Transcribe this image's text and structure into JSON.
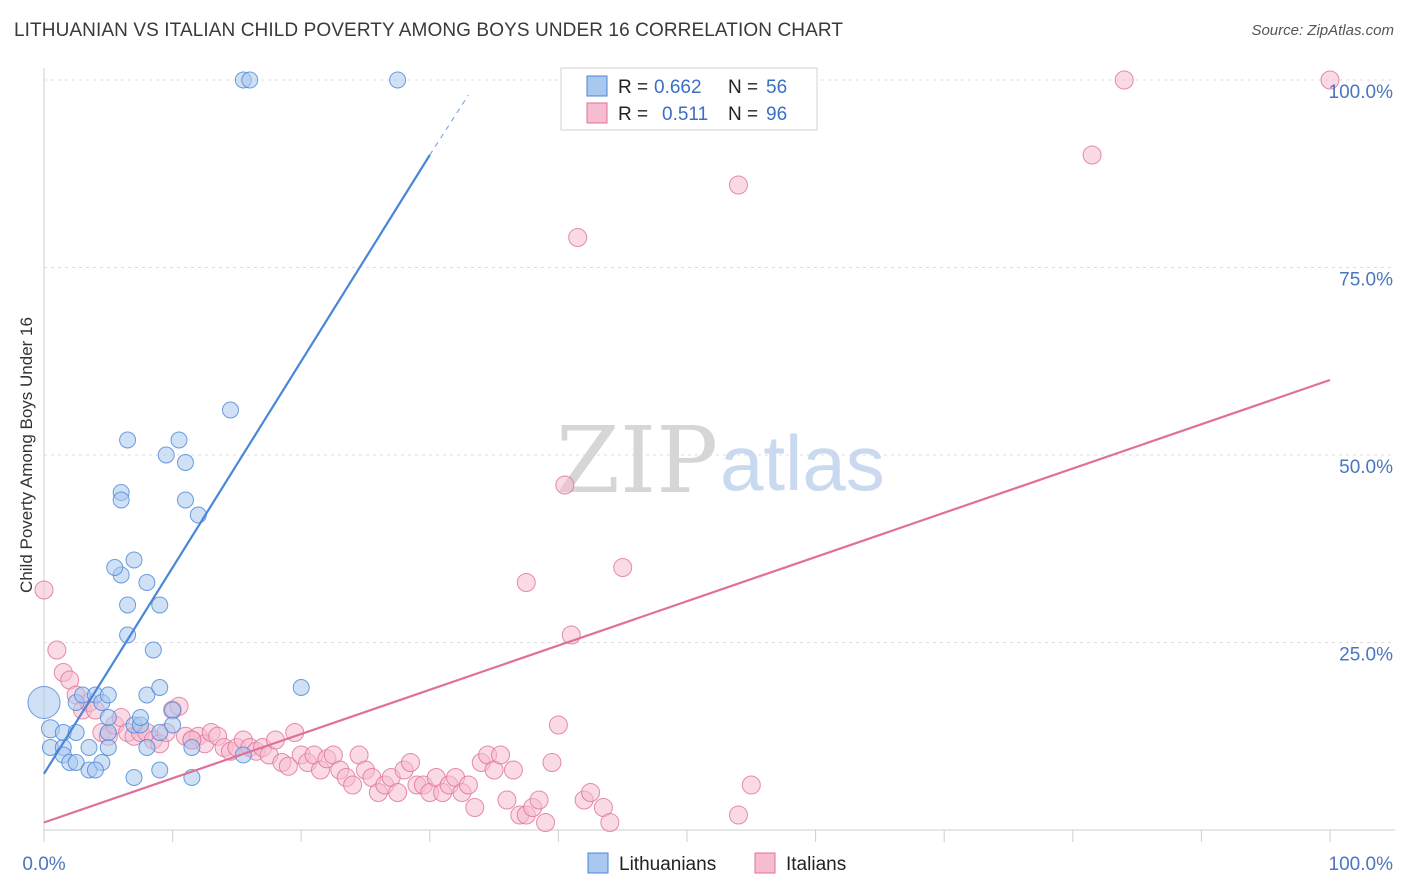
{
  "title": "LITHUANIAN VS ITALIAN CHILD POVERTY AMONG BOYS UNDER 16 CORRELATION CHART",
  "source": "Source: ZipAtlas.com",
  "watermark": {
    "zip": "ZIP",
    "atlas": "atlas"
  },
  "chart_data": {
    "type": "scatter",
    "ylabel": "Child Poverty Among Boys Under 16",
    "xlim": [
      0,
      100
    ],
    "ylim": [
      0,
      100
    ],
    "x_tick_labels": [
      "0.0%",
      "100.0%"
    ],
    "y_ticks": [
      {
        "value": 25,
        "label": "25.0%"
      },
      {
        "value": 50,
        "label": "50.0%"
      },
      {
        "value": 75,
        "label": "75.0%"
      },
      {
        "value": 100,
        "label": "100.0%"
      }
    ],
    "grid": true,
    "legend_position": "top-center",
    "series": [
      {
        "name": "Lithuanians",
        "color": "#4a86d8",
        "fill": "#a9c8ef",
        "R": "0.662",
        "N": "56",
        "trend": {
          "x0": 0,
          "y0": 7.5,
          "x1": 30,
          "y1": 90,
          "dash_to_x": 33,
          "dash_to_y": 98
        },
        "points": [
          [
            0,
            17,
            16
          ],
          [
            0.5,
            13.5,
            9
          ],
          [
            0.5,
            11,
            8
          ],
          [
            1.5,
            11,
            8
          ],
          [
            1.5,
            10,
            8
          ],
          [
            2,
            9,
            8
          ],
          [
            1.5,
            13,
            8
          ],
          [
            2.5,
            17,
            8
          ],
          [
            2.5,
            13,
            8
          ],
          [
            2.5,
            9,
            8
          ],
          [
            3,
            18,
            8
          ],
          [
            3.5,
            11,
            8
          ],
          [
            3.5,
            8,
            8
          ],
          [
            4,
            18,
            8
          ],
          [
            4.5,
            9,
            8
          ],
          [
            4.5,
            17,
            8
          ],
          [
            5,
            11,
            8
          ],
          [
            5,
            18,
            8
          ],
          [
            5,
            13,
            8
          ],
          [
            5,
            15,
            8
          ],
          [
            6,
            45,
            8
          ],
          [
            6,
            44,
            8
          ],
          [
            6,
            34,
            8
          ],
          [
            5.5,
            35,
            8
          ],
          [
            6.5,
            52,
            8
          ],
          [
            6.5,
            30,
            8
          ],
          [
            6.5,
            26,
            8
          ],
          [
            7,
            7,
            8
          ],
          [
            7,
            36,
            8
          ],
          [
            7,
            14,
            8
          ],
          [
            7.5,
            14,
            8
          ],
          [
            7.5,
            15,
            8
          ],
          [
            8,
            33,
            8
          ],
          [
            8,
            18,
            8
          ],
          [
            8,
            11,
            8
          ],
          [
            8.5,
            24,
            8
          ],
          [
            9,
            19,
            8
          ],
          [
            9,
            13,
            8
          ],
          [
            9,
            8,
            8
          ],
          [
            9,
            30,
            8
          ],
          [
            9.5,
            50,
            8
          ],
          [
            10,
            16,
            8
          ],
          [
            10,
            14,
            8
          ],
          [
            10.5,
            52,
            8
          ],
          [
            11,
            49,
            8
          ],
          [
            11,
            44,
            8
          ],
          [
            11.5,
            11,
            8
          ],
          [
            11.5,
            7,
            8
          ],
          [
            12,
            42,
            8
          ],
          [
            14.5,
            56,
            8
          ],
          [
            15.5,
            10,
            8
          ],
          [
            15.5,
            100,
            8
          ],
          [
            16,
            100,
            8
          ],
          [
            20,
            19,
            8
          ],
          [
            27.5,
            100,
            8
          ],
          [
            4,
            8,
            8
          ]
        ]
      },
      {
        "name": "Italians",
        "color": "#e0709a",
        "fill": "#f6bcd0",
        "R": "0.511",
        "N": "96",
        "trend": {
          "x0": 0,
          "y0": 1,
          "x1": 100,
          "y1": 60
        },
        "points": [
          [
            0,
            32,
            9
          ],
          [
            1,
            24,
            9
          ],
          [
            1.5,
            21,
            9
          ],
          [
            2,
            20,
            9
          ],
          [
            2.5,
            18,
            9
          ],
          [
            3,
            16,
            9
          ],
          [
            3.5,
            17,
            9
          ],
          [
            4,
            16,
            9
          ],
          [
            4.5,
            13,
            9
          ],
          [
            5,
            12.5,
            9
          ],
          [
            5.5,
            14,
            9
          ],
          [
            6,
            15,
            9
          ],
          [
            6.5,
            13,
            9
          ],
          [
            7,
            12.5,
            9
          ],
          [
            7.5,
            13,
            9
          ],
          [
            8,
            13,
            9
          ],
          [
            8.5,
            12,
            9
          ],
          [
            9,
            11.5,
            9
          ],
          [
            9.5,
            13,
            9
          ],
          [
            10,
            16,
            9
          ],
          [
            10.5,
            16.5,
            9
          ],
          [
            11,
            12.5,
            9
          ],
          [
            11.5,
            12,
            9
          ],
          [
            12,
            12.5,
            9
          ],
          [
            12.5,
            11.5,
            9
          ],
          [
            13,
            13,
            9
          ],
          [
            13.5,
            12.5,
            9
          ],
          [
            14,
            11,
            9
          ],
          [
            14.5,
            10.5,
            9
          ],
          [
            15,
            11,
            9
          ],
          [
            15.5,
            12,
            9
          ],
          [
            16,
            11,
            9
          ],
          [
            16.5,
            10.5,
            9
          ],
          [
            17,
            11,
            9
          ],
          [
            17.5,
            10,
            9
          ],
          [
            18,
            12,
            9
          ],
          [
            18.5,
            9,
            9
          ],
          [
            19,
            8.5,
            9
          ],
          [
            19.5,
            13,
            9
          ],
          [
            20,
            10,
            9
          ],
          [
            20.5,
            9,
            9
          ],
          [
            21,
            10,
            9
          ],
          [
            21.5,
            8,
            9
          ],
          [
            22,
            9.5,
            9
          ],
          [
            22.5,
            10,
            9
          ],
          [
            23,
            8,
            9
          ],
          [
            23.5,
            7,
            9
          ],
          [
            24,
            6,
            9
          ],
          [
            24.5,
            10,
            9
          ],
          [
            25,
            8,
            9
          ],
          [
            25.5,
            7,
            9
          ],
          [
            26,
            5,
            9
          ],
          [
            26.5,
            6,
            9
          ],
          [
            27,
            7,
            9
          ],
          [
            27.5,
            5,
            9
          ],
          [
            28,
            8,
            9
          ],
          [
            28.5,
            9,
            9
          ],
          [
            29,
            6,
            9
          ],
          [
            29.5,
            6,
            9
          ],
          [
            30,
            5,
            9
          ],
          [
            30.5,
            7,
            9
          ],
          [
            31,
            5,
            9
          ],
          [
            31.5,
            6,
            9
          ],
          [
            32,
            7,
            9
          ],
          [
            32.5,
            5,
            9
          ],
          [
            33,
            6,
            9
          ],
          [
            33.5,
            3,
            9
          ],
          [
            34,
            9,
            9
          ],
          [
            34.5,
            10,
            9
          ],
          [
            35,
            8,
            9
          ],
          [
            35.5,
            10,
            9
          ],
          [
            36,
            4,
            9
          ],
          [
            36.5,
            8,
            9
          ],
          [
            37,
            2,
            9
          ],
          [
            37.5,
            2,
            9
          ],
          [
            38,
            3,
            9
          ],
          [
            38.5,
            4,
            9
          ],
          [
            39,
            1,
            9
          ],
          [
            39.5,
            9,
            9
          ],
          [
            40,
            14,
            9
          ],
          [
            41,
            26,
            9
          ],
          [
            42,
            4,
            9
          ],
          [
            42.5,
            5,
            9
          ],
          [
            43.5,
            3,
            9
          ],
          [
            44,
            1,
            9
          ],
          [
            37.5,
            33,
            9
          ],
          [
            41.5,
            79,
            9
          ],
          [
            45,
            35,
            9
          ],
          [
            40.5,
            46,
            9
          ],
          [
            54,
            2,
            9
          ],
          [
            54,
            86,
            9
          ],
          [
            55,
            6,
            9
          ],
          [
            81.5,
            90,
            9
          ],
          [
            84,
            100,
            9
          ],
          [
            100,
            100,
            9
          ],
          [
            11.5,
            12,
            9
          ]
        ]
      }
    ]
  },
  "bottom_legend": [
    {
      "label": "Lithuanians"
    },
    {
      "label": "Italians"
    }
  ]
}
